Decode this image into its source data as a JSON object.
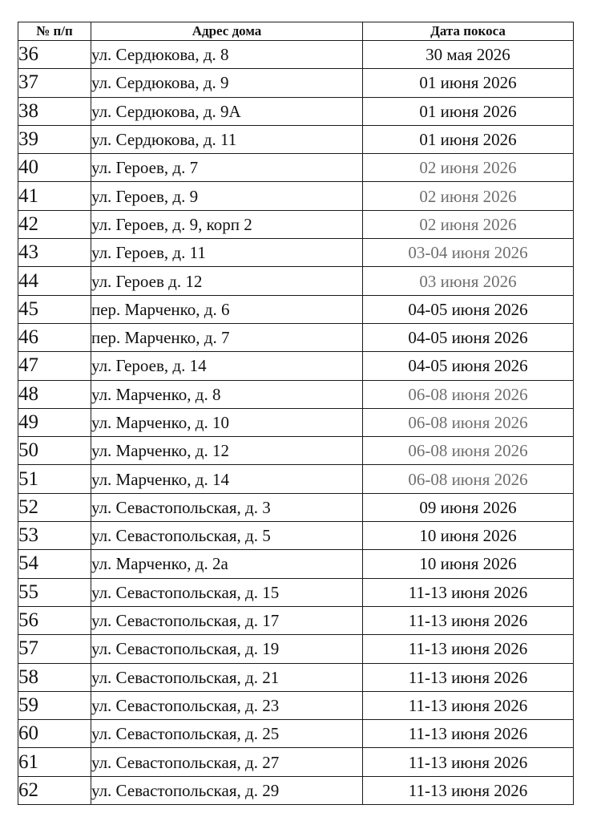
{
  "table": {
    "headers": {
      "num": "№ п/п",
      "address": "Адрес дома",
      "date": "Дата покоса"
    },
    "colors": {
      "text": "#111111",
      "muted": "#6f6f6f",
      "border": "#1a1a1a"
    },
    "rows": [
      {
        "num": "36",
        "address": "ул. Сердюкова, д. 8",
        "date": "30 мая 2026",
        "muted": false
      },
      {
        "num": "37",
        "address": "ул. Сердюкова, д. 9",
        "date": "01 июня 2026",
        "muted": false
      },
      {
        "num": "38",
        "address": "ул. Сердюкова, д. 9А",
        "date": "01 июня 2026",
        "muted": false
      },
      {
        "num": "39",
        "address": "ул. Сердюкова, д. 11",
        "date": "01 июня 2026",
        "muted": false
      },
      {
        "num": "40",
        "address": "ул. Героев, д. 7",
        "date": "02 июня 2026",
        "muted": true
      },
      {
        "num": "41",
        "address": "ул. Героев, д. 9",
        "date": "02 июня 2026",
        "muted": true
      },
      {
        "num": "42",
        "address": "ул. Героев, д. 9, корп 2",
        "date": "02 июня 2026",
        "muted": true
      },
      {
        "num": "43",
        "address": "ул. Героев, д. 11",
        "date": "03-04 июня 2026",
        "muted": true
      },
      {
        "num": "44",
        "address": "ул. Героев д. 12",
        "date": "03 июня 2026",
        "muted": true
      },
      {
        "num": "45",
        "address": "пер. Марченко, д. 6",
        "date": "04-05 июня 2026",
        "muted": false
      },
      {
        "num": "46",
        "address": "пер. Марченко, д. 7",
        "date": "04-05 июня 2026",
        "muted": false
      },
      {
        "num": "47",
        "address": "ул. Героев, д. 14",
        "date": "04-05 июня 2026",
        "muted": false
      },
      {
        "num": "48",
        "address": "ул. Марченко, д. 8",
        "date": "06-08 июня 2026",
        "muted": true
      },
      {
        "num": "49",
        "address": "ул. Марченко, д. 10",
        "date": "06-08 июня 2026",
        "muted": true
      },
      {
        "num": "50",
        "address": "ул. Марченко, д. 12",
        "date": "06-08 июня 2026",
        "muted": true
      },
      {
        "num": "51",
        "address": "ул. Марченко, д. 14",
        "date": "06-08 июня 2026",
        "muted": true
      },
      {
        "num": "52",
        "address": "ул. Севастопольская, д. 3",
        "date": "09 июня 2026",
        "muted": false
      },
      {
        "num": "53",
        "address": "ул. Севастопольская, д. 5",
        "date": "10 июня 2026",
        "muted": false
      },
      {
        "num": "54",
        "address": "ул. Марченко, д. 2а",
        "date": "10 июня 2026",
        "muted": false
      },
      {
        "num": "55",
        "address": "ул. Севастопольская, д. 15",
        "date": "11-13 июня 2026",
        "muted": false
      },
      {
        "num": "56",
        "address": "ул. Севастопольская, д. 17",
        "date": "11-13 июня 2026",
        "muted": false
      },
      {
        "num": "57",
        "address": "ул. Севастопольская, д. 19",
        "date": "11-13 июня 2026",
        "muted": false
      },
      {
        "num": "58",
        "address": "ул. Севастопольская, д. 21",
        "date": "11-13 июня 2026",
        "muted": false
      },
      {
        "num": "59",
        "address": "ул. Севастопольская, д. 23",
        "date": "11-13 июня 2026",
        "muted": false
      },
      {
        "num": "60",
        "address": "ул. Севастопольская, д. 25",
        "date": "11-13 июня 2026",
        "muted": false
      },
      {
        "num": "61",
        "address": "ул. Севастопольская, д. 27",
        "date": "11-13 июня 2026",
        "muted": false
      },
      {
        "num": "62",
        "address": "ул. Севастопольская, д. 29",
        "date": "11-13 июня 2026",
        "muted": false
      }
    ]
  }
}
